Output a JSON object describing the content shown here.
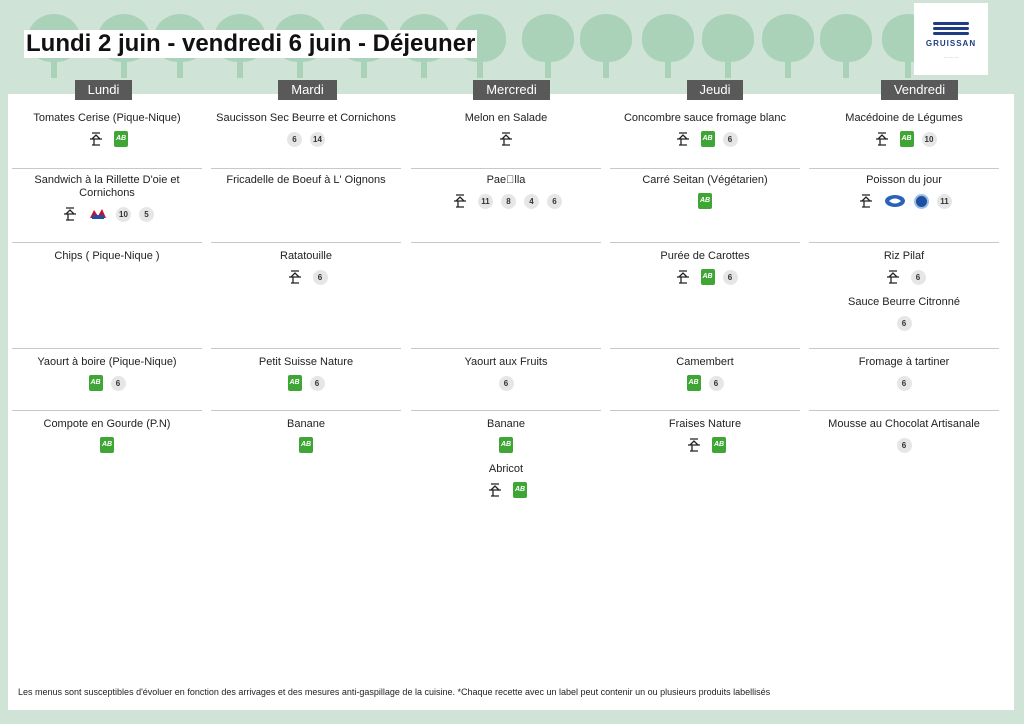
{
  "title": "Lundi 2 juin - vendredi 6 juin  - Déjeuner",
  "logo": {
    "name": "GRUISSAN"
  },
  "days": [
    {
      "name": "Lundi",
      "items": [
        {
          "dish": "Tomates Cerise (Pique-Nique)",
          "tags": [
            "fait-maison-icon",
            "ab-icon"
          ]
        },
        {
          "dish": "Sandwich à la Rillette D'oie et Cornichons",
          "tags": [
            "fait-maison-icon",
            "origine-france-icon",
            "10",
            "5"
          ]
        },
        {
          "dish": "Chips ( Pique-Nique )",
          "tags": []
        },
        {
          "dish": "Yaourt à boire (Pique-Nique)",
          "tags": [
            "ab-icon",
            "6"
          ]
        },
        {
          "dish": "Compote en Gourde (P.N)",
          "tags": [
            "ab-icon"
          ]
        }
      ]
    },
    {
      "name": "Mardi",
      "items": [
        {
          "dish": "Saucisson Sec Beurre et Cornichons",
          "tags": [
            "6",
            "14"
          ]
        },
        {
          "dish": "Fricadelle de Boeuf à L' Oignons",
          "tags": []
        },
        {
          "dish": "Ratatouille",
          "tags": [
            "fait-maison-icon",
            "6"
          ]
        },
        {
          "dish": "Petit Suisse Nature",
          "tags": [
            "ab-icon",
            "6"
          ]
        },
        {
          "dish": "Banane",
          "tags": [
            "ab-icon"
          ]
        }
      ]
    },
    {
      "name": "Mercredi",
      "items": [
        {
          "dish": "Melon en Salade",
          "tags": [
            "fait-maison-icon"
          ]
        },
        {
          "dish": "Pae\u0000lla",
          "tags": [
            "fait-maison-icon",
            "11",
            "8",
            "4",
            "6"
          ]
        },
        {
          "dish": "",
          "tags": []
        },
        {
          "dish": "Yaourt aux Fruits",
          "tags": [
            "6"
          ]
        },
        {
          "dish": "Banane",
          "tags": [
            "ab-icon"
          ]
        },
        {
          "dish": "Abricot",
          "tags": [
            "fait-maison-icon",
            "ab-icon"
          ]
        }
      ]
    },
    {
      "name": "Jeudi",
      "items": [
        {
          "dish": "Concombre sauce fromage blanc",
          "tags": [
            "fait-maison-icon",
            "ab-icon",
            "6"
          ]
        },
        {
          "dish": "Carré Seitan (Végétarien)",
          "tags": [
            "ab-icon"
          ]
        },
        {
          "dish": "Purée de Carottes",
          "tags": [
            "fait-maison-icon",
            "ab-icon",
            "6"
          ]
        },
        {
          "dish": "Camembert",
          "tags": [
            "ab-icon",
            "6"
          ]
        },
        {
          "dish": "Fraises Nature",
          "tags": [
            "fait-maison-icon",
            "ab-icon"
          ]
        }
      ]
    },
    {
      "name": "Vendredi",
      "items": [
        {
          "dish": "Macédoine de Légumes",
          "tags": [
            "fait-maison-icon",
            "ab-icon",
            "10"
          ]
        },
        {
          "dish": "Poisson du jour",
          "tags": [
            "fait-maison-icon",
            "peche-durable-icon",
            "label-icon",
            "11"
          ]
        },
        {
          "dish": "Riz Pilaf",
          "tags": [
            "fait-maison-icon",
            "6"
          ]
        },
        {
          "dish": "Sauce Beurre Citronné",
          "tags": [
            "6"
          ]
        },
        {
          "dish": "Fromage à tartiner",
          "tags": [
            "6"
          ]
        },
        {
          "dish": "Mousse au Chocolat Artisanale",
          "tags": [
            "6"
          ]
        }
      ]
    }
  ],
  "footer": "Les menus sont susceptibles d'évoluer en fonction des arrivages et des mesures anti-gaspillage de la cuisine. *Chaque recette avec un label peut contenir un ou plusieurs produits labellisés"
}
